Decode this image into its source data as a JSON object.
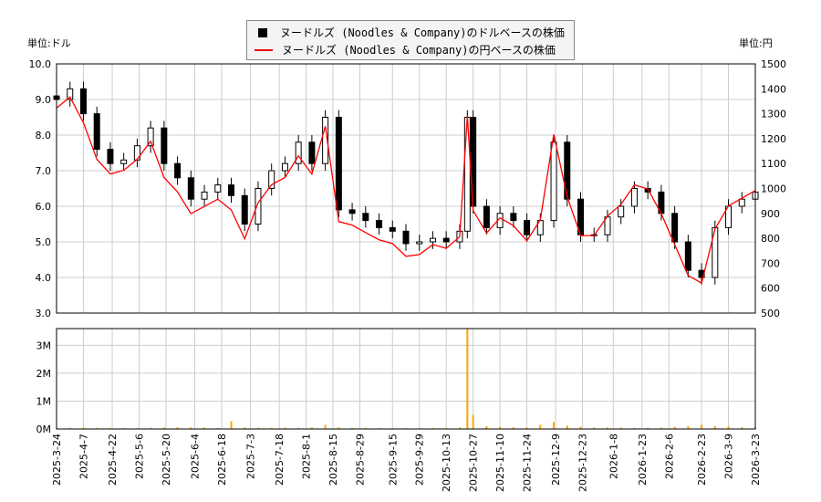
{
  "units": {
    "left": "単位:ドル",
    "right": "単位:円"
  },
  "legend": {
    "usd": "ヌードルズ (Noodles & Company)のドルベースの株価",
    "jpy": "ヌードルズ (Noodles & Company)の円ベースの株価"
  },
  "colors": {
    "usd": "#000000",
    "jpy": "#ff0000",
    "volume": "#ffa500",
    "grid": "#cccccc"
  },
  "chart_data": {
    "type": "candlestick+line+bar",
    "xlim": [
      "2025-03-24",
      "2026-03-23"
    ],
    "ylim_usd": [
      3.0,
      10.0
    ],
    "ylim_jpy": [
      500,
      1500
    ],
    "ylim_volume_M": [
      0,
      3.6
    ],
    "usd_ticks": [
      "3.0",
      "4.0",
      "5.0",
      "6.0",
      "7.0",
      "8.0",
      "9.0",
      "10.0"
    ],
    "jpy_ticks": [
      "500",
      "600",
      "700",
      "800",
      "900",
      "1000",
      "1100",
      "1200",
      "1300",
      "1400",
      "1500"
    ],
    "volume_ticks": [
      "0M",
      "1M",
      "2M",
      "3M"
    ],
    "x_ticks": [
      "2025-3-24",
      "2025-4-7",
      "2025-4-22",
      "2025-5-6",
      "2025-5-20",
      "2025-6-4",
      "2025-6-18",
      "2025-7-3",
      "2025-7-18",
      "2025-8-1",
      "2025-8-15",
      "2025-8-29",
      "2025-9-15",
      "2025-9-29",
      "2025-10-13",
      "2025-10-27",
      "2025-11-10",
      "2025-11-24",
      "2025-12-9",
      "2025-12-23",
      "2026-1-8",
      "2026-1-23",
      "2026-2-6",
      "2026-2-23",
      "2026-3-9",
      "2026-3-23"
    ],
    "grid": true,
    "dates": [
      "2025-03-24",
      "2025-03-31",
      "2025-04-07",
      "2025-04-14",
      "2025-04-21",
      "2025-04-28",
      "2025-05-05",
      "2025-05-12",
      "2025-05-19",
      "2025-05-26",
      "2025-06-02",
      "2025-06-09",
      "2025-06-16",
      "2025-06-23",
      "2025-06-30",
      "2025-07-07",
      "2025-07-14",
      "2025-07-21",
      "2025-07-28",
      "2025-08-04",
      "2025-08-11",
      "2025-08-18",
      "2025-08-25",
      "2025-09-01",
      "2025-09-08",
      "2025-09-15",
      "2025-09-22",
      "2025-09-29",
      "2025-10-06",
      "2025-10-13",
      "2025-10-20",
      "2025-10-24",
      "2025-10-27",
      "2025-11-03",
      "2025-11-10",
      "2025-11-17",
      "2025-11-24",
      "2025-12-01",
      "2025-12-08",
      "2025-12-15",
      "2025-12-22",
      "2025-12-29",
      "2026-01-05",
      "2026-01-12",
      "2026-01-19",
      "2026-01-26",
      "2026-02-02",
      "2026-02-09",
      "2026-02-16",
      "2026-02-23",
      "2026-03-02",
      "2026-03-09",
      "2026-03-16",
      "2026-03-23"
    ],
    "close_usd": [
      9.0,
      9.3,
      8.6,
      7.6,
      7.2,
      7.3,
      7.7,
      8.2,
      7.2,
      6.8,
      6.2,
      6.4,
      6.6,
      6.3,
      5.5,
      6.5,
      7.0,
      7.2,
      7.8,
      7.2,
      8.5,
      5.9,
      5.8,
      5.6,
      5.4,
      5.3,
      4.95,
      5.0,
      5.1,
      5.0,
      5.3,
      8.5,
      6.0,
      5.4,
      5.8,
      5.6,
      5.2,
      5.6,
      7.8,
      6.2,
      5.2,
      5.2,
      5.7,
      6.0,
      6.5,
      6.4,
      5.8,
      5.0,
      4.2,
      4.0,
      5.4,
      6.0,
      6.2,
      6.4
    ],
    "close_jpy": [
      1323,
      1367,
      1264,
      1117,
      1058,
      1073,
      1117,
      1189,
      1044,
      986,
      899,
      928,
      957,
      914,
      798,
      943,
      1015,
      1044,
      1131,
      1058,
      1250,
      867,
      853,
      823,
      794,
      779,
      728,
      735,
      775,
      760,
      806,
      1292,
      912,
      821,
      882,
      851,
      790,
      874,
      1217,
      967,
      811,
      811,
      889,
      936,
      1014,
      998,
      899,
      775,
      651,
      620,
      837,
      930,
      961,
      992
    ],
    "volume_M": [
      0.03,
      0.04,
      0.05,
      0.04,
      0.03,
      0.03,
      0.03,
      0.04,
      0.05,
      0.06,
      0.06,
      0.05,
      0.04,
      0.28,
      0.05,
      0.04,
      0.04,
      0.05,
      0.04,
      0.06,
      0.15,
      0.06,
      0.04,
      0.04,
      0.03,
      0.03,
      0.03,
      0.03,
      0.03,
      0.03,
      0.05,
      3.6,
      0.5,
      0.1,
      0.08,
      0.06,
      0.05,
      0.15,
      0.25,
      0.12,
      0.08,
      0.05,
      0.05,
      0.05,
      0.04,
      0.04,
      0.05,
      0.08,
      0.1,
      0.15,
      0.1,
      0.1,
      0.06,
      0.05
    ]
  }
}
